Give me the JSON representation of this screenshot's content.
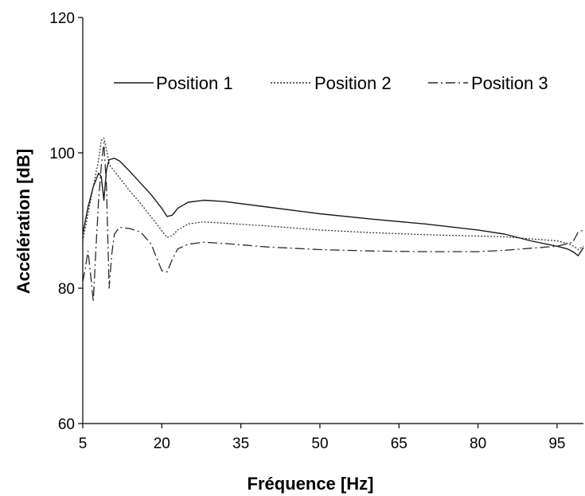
{
  "chart_data": {
    "type": "line",
    "title": "",
    "xlabel": "Fréquence [Hz]",
    "ylabel": "Accélération [dB]",
    "xlim": [
      5,
      100
    ],
    "ylim": [
      60,
      120
    ],
    "x_ticks": [
      5,
      20,
      35,
      50,
      65,
      80,
      95
    ],
    "y_ticks": [
      60,
      80,
      100,
      120
    ],
    "grid": false,
    "legend_position": "top",
    "series": [
      {
        "name": "Position 1",
        "line_style": "solid",
        "x": [
          5,
          6,
          7,
          8,
          8.5,
          9,
          9.5,
          10,
          11,
          12,
          14,
          16,
          18,
          20,
          21,
          22,
          23,
          25,
          28,
          32,
          40,
          50,
          60,
          70,
          80,
          85,
          90,
          95,
          97,
          98,
          99,
          100
        ],
        "y": [
          88,
          92,
          95,
          97,
          96.5,
          93,
          97.5,
          99,
          99.2,
          98.8,
          97.2,
          95.5,
          93.8,
          91.8,
          90.6,
          90.8,
          91.8,
          92.7,
          93,
          92.8,
          92,
          91,
          90.2,
          89.5,
          88.6,
          88,
          87,
          86.2,
          85.8,
          85.4,
          84.8,
          86
        ]
      },
      {
        "name": "Position 2",
        "line_style": "dotted",
        "x": [
          5,
          6,
          7,
          8,
          8.5,
          9,
          9.5,
          10,
          11,
          12,
          14,
          16,
          18,
          20,
          21,
          22,
          23,
          25,
          28,
          32,
          40,
          50,
          60,
          70,
          80,
          85,
          90,
          95,
          97,
          98,
          99,
          100
        ],
        "y": [
          87,
          91,
          95,
          99,
          101.8,
          102.2,
          100.5,
          98.3,
          97.3,
          96.3,
          94.3,
          92.5,
          90.5,
          88.5,
          87.5,
          87.8,
          88.6,
          89.5,
          89.8,
          89.6,
          89.2,
          88.6,
          88.2,
          87.9,
          87.7,
          87.6,
          87.3,
          87,
          86.6,
          86.3,
          85.7,
          86.2
        ]
      },
      {
        "name": "Position 3",
        "line_style": "dash-dot",
        "x": [
          5,
          5.5,
          6,
          6.5,
          7,
          7.5,
          8,
          8.5,
          9,
          9.5,
          10,
          10.5,
          11,
          12,
          14,
          16,
          18,
          19,
          20,
          21,
          22,
          23,
          25,
          28,
          32,
          40,
          50,
          60,
          70,
          80,
          85,
          90,
          95,
          96,
          97,
          98,
          99,
          100
        ],
        "y": [
          81,
          83,
          85.5,
          82,
          78,
          86,
          93,
          98,
          101.5,
          95,
          80,
          85,
          88,
          89,
          88.8,
          88.3,
          86.5,
          84.5,
          82.6,
          82.4,
          84.3,
          85.8,
          86.5,
          86.8,
          86.6,
          86.1,
          85.7,
          85.5,
          85.4,
          85.4,
          85.6,
          85.9,
          86.2,
          86.4,
          86.6,
          86.8,
          88.3,
          88.6
        ]
      }
    ]
  }
}
